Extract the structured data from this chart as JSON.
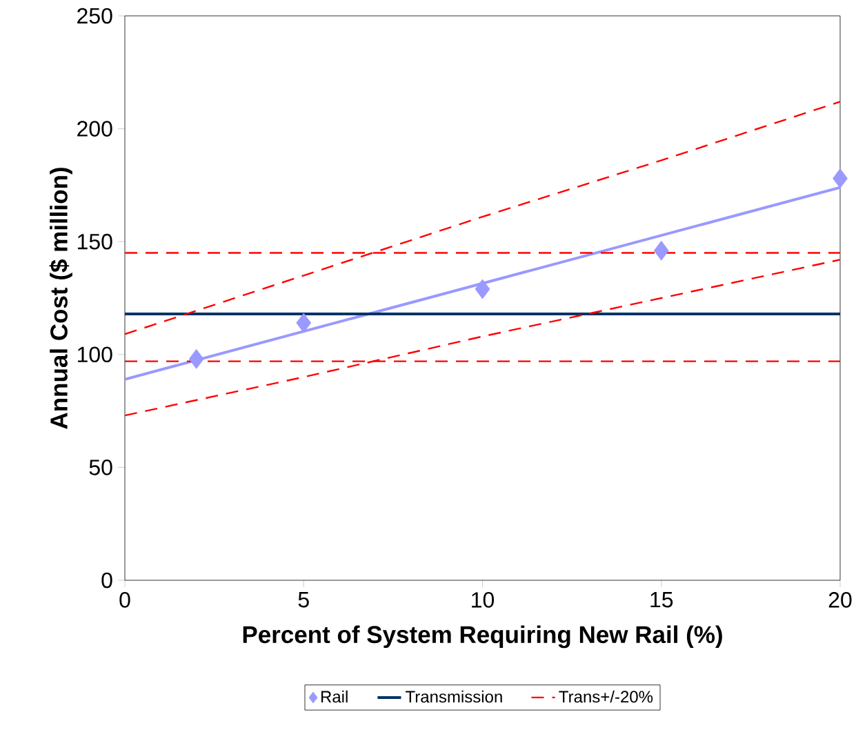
{
  "chart_data": {
    "type": "scatter",
    "xlabel": "Percent of System Requiring New Rail (%)",
    "ylabel": "Annual Cost ($ million)",
    "xlim": [
      0,
      20
    ],
    "ylim": [
      0,
      250
    ],
    "xticks": [
      0,
      5,
      10,
      15,
      20
    ],
    "yticks": [
      0,
      50,
      100,
      150,
      200,
      250
    ],
    "grid": false,
    "legend": "bottom",
    "series": [
      {
        "name": "Rail",
        "marker": "diamond",
        "color": "#9999ff",
        "x": [
          2,
          5,
          10,
          15,
          20
        ],
        "values": [
          98,
          114,
          129,
          146,
          178
        ]
      },
      {
        "type": "line",
        "marker": "none",
        "line_style": "solid",
        "color": "#9999ff",
        "x": [
          0,
          20
        ],
        "values": [
          89,
          174
        ]
      },
      {
        "name": "Transmission",
        "type": "line",
        "marker": "none",
        "line_style": "solid",
        "color": "#003366",
        "x": [
          0,
          20
        ],
        "values": [
          118,
          118
        ]
      },
      {
        "name": "Trans+/-20%",
        "type": "line",
        "marker": "none",
        "line_style": "dashed",
        "color": "#ff0000",
        "x": [
          0,
          20
        ],
        "values": [
          145,
          145
        ]
      },
      {
        "type": "line",
        "marker": "none",
        "line_style": "dashed",
        "color": "#ff0000",
        "x": [
          0,
          20
        ],
        "values": [
          97,
          97
        ]
      },
      {
        "type": "line",
        "marker": "none",
        "line_style": "dashed",
        "color": "#ff0000",
        "x": [
          0,
          5,
          10,
          15,
          20
        ],
        "values": [
          109,
          135,
          161,
          186,
          212
        ]
      },
      {
        "type": "line",
        "marker": "none",
        "line_style": "dashed",
        "color": "#ff0000",
        "x": [
          0,
          5,
          10,
          15,
          20
        ],
        "values": [
          73,
          90,
          108,
          125,
          142
        ]
      }
    ]
  }
}
